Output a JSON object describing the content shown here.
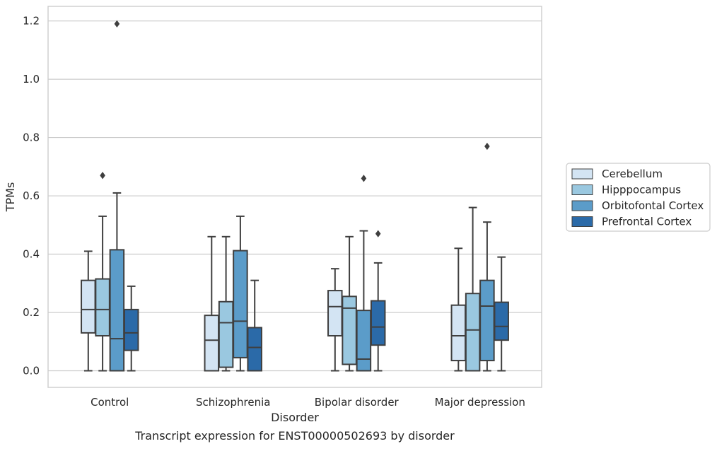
{
  "chart_data": {
    "type": "boxplot",
    "title": "",
    "caption": "Transcript expression for ENST00000502693 by disorder",
    "xlabel": "Disorder",
    "ylabel": "TPMs",
    "ylim": [
      -0.057,
      1.25
    ],
    "yticks": [
      0.0,
      0.2,
      0.4,
      0.6,
      0.8,
      1.0,
      1.2
    ],
    "ytick_labels": [
      "0.0",
      "0.2",
      "0.4",
      "0.6",
      "0.8",
      "1.0",
      "1.2"
    ],
    "grid": "horizontal",
    "legend_position": "right",
    "categories": [
      "Control",
      "Schizophrenia",
      "Bipolar disorder",
      "Major depression"
    ],
    "series": [
      {
        "name": "Cerebellum",
        "color": "#d3e4f3",
        "boxes": [
          {
            "whislo": 0.0,
            "q1": 0.13,
            "med": 0.21,
            "q3": 0.31,
            "whishi": 0.41,
            "fliers": []
          },
          {
            "whislo": 0.0,
            "q1": 0.0,
            "med": 0.105,
            "q3": 0.19,
            "whishi": 0.46,
            "fliers": []
          },
          {
            "whislo": 0.0,
            "q1": 0.12,
            "med": 0.22,
            "q3": 0.275,
            "whishi": 0.35,
            "fliers": []
          },
          {
            "whislo": 0.0,
            "q1": 0.035,
            "med": 0.12,
            "q3": 0.225,
            "whishi": 0.42,
            "fliers": []
          }
        ]
      },
      {
        "name": "Hipppocampus",
        "color": "#9ac8e0",
        "boxes": [
          {
            "whislo": 0.0,
            "q1": 0.12,
            "med": 0.21,
            "q3": 0.315,
            "whishi": 0.53,
            "fliers": [
              0.67
            ]
          },
          {
            "whislo": 0.0,
            "q1": 0.012,
            "med": 0.165,
            "q3": 0.237,
            "whishi": 0.46,
            "fliers": []
          },
          {
            "whislo": 0.0,
            "q1": 0.022,
            "med": 0.215,
            "q3": 0.255,
            "whishi": 0.46,
            "fliers": []
          },
          {
            "whislo": 0.0,
            "q1": 0.0,
            "med": 0.14,
            "q3": 0.265,
            "whishi": 0.56,
            "fliers": []
          }
        ]
      },
      {
        "name": "Orbitofontal Cortex",
        "color": "#5b9cc9",
        "boxes": [
          {
            "whislo": 0.0,
            "q1": 0.0,
            "med": 0.11,
            "q3": 0.415,
            "whishi": 0.61,
            "fliers": [
              1.19
            ]
          },
          {
            "whislo": 0.0,
            "q1": 0.045,
            "med": 0.17,
            "q3": 0.412,
            "whishi": 0.53,
            "fliers": []
          },
          {
            "whislo": 0.0,
            "q1": 0.0,
            "med": 0.04,
            "q3": 0.207,
            "whishi": 0.48,
            "fliers": [
              0.66
            ]
          },
          {
            "whislo": 0.0,
            "q1": 0.035,
            "med": 0.222,
            "q3": 0.31,
            "whishi": 0.51,
            "fliers": [
              0.77
            ]
          }
        ]
      },
      {
        "name": "Prefrontal Cortex",
        "color": "#2b6aa8",
        "boxes": [
          {
            "whislo": 0.0,
            "q1": 0.07,
            "med": 0.13,
            "q3": 0.21,
            "whishi": 0.29,
            "fliers": []
          },
          {
            "whislo": 0.0,
            "q1": 0.0,
            "med": 0.08,
            "q3": 0.148,
            "whishi": 0.31,
            "fliers": []
          },
          {
            "whislo": 0.0,
            "q1": 0.088,
            "med": 0.15,
            "q3": 0.24,
            "whishi": 0.37,
            "fliers": [
              0.47
            ]
          },
          {
            "whislo": 0.0,
            "q1": 0.105,
            "med": 0.152,
            "q3": 0.235,
            "whishi": 0.39,
            "fliers": []
          }
        ]
      }
    ]
  }
}
